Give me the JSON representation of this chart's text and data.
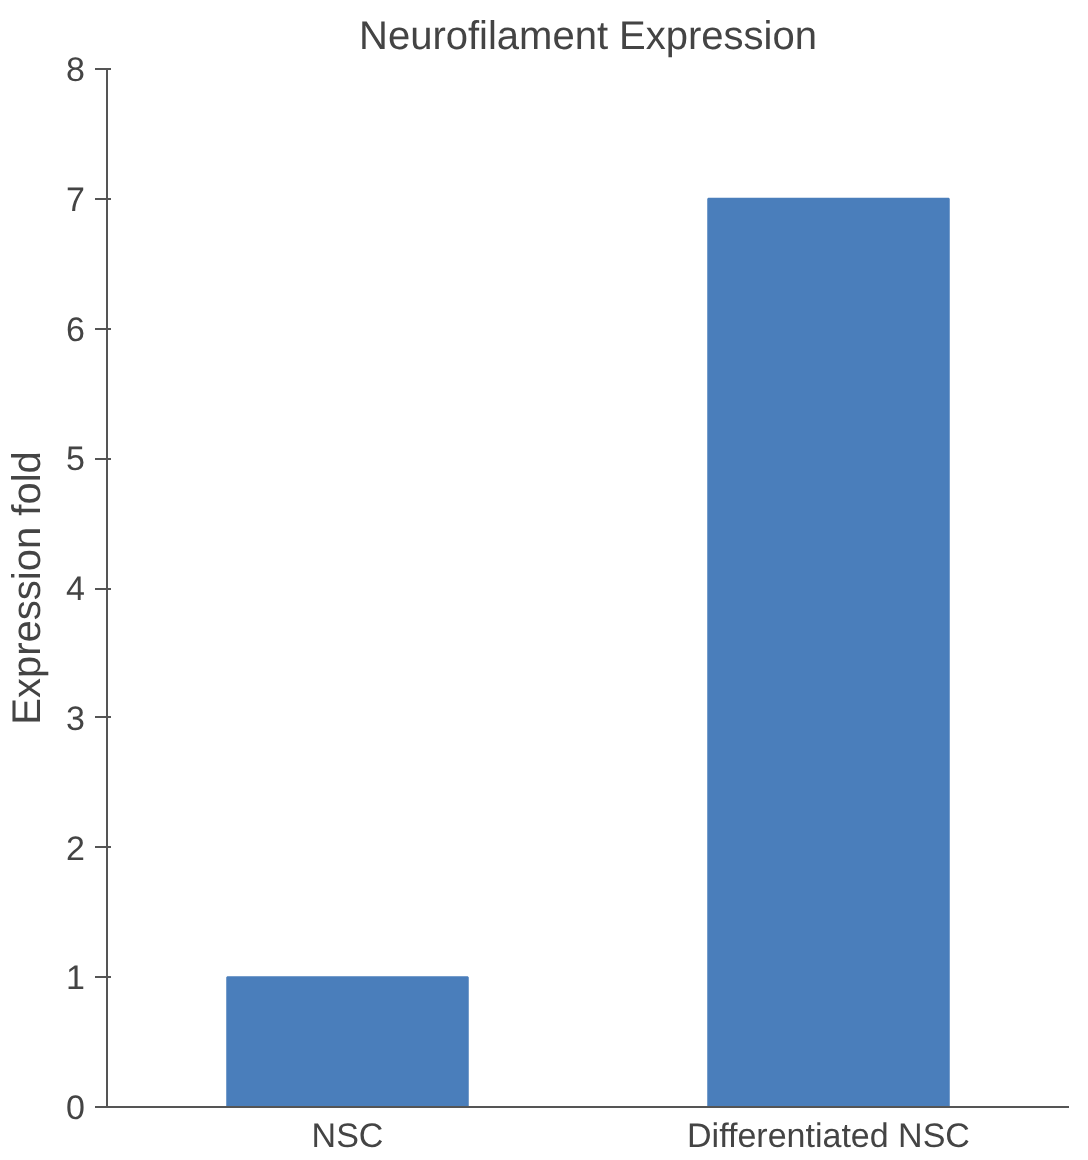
{
  "chart_data": {
    "type": "bar",
    "title": "Neurofilament Expression",
    "ylabel": "Expression fold",
    "categories": [
      "NSC",
      "Differentiated NSC"
    ],
    "values": [
      1,
      7
    ],
    "color": "#4a7ebb",
    "ylim": [
      0,
      8
    ],
    "yticks": [
      0,
      1,
      2,
      3,
      4,
      5,
      6,
      7,
      8
    ],
    "grid": false
  }
}
